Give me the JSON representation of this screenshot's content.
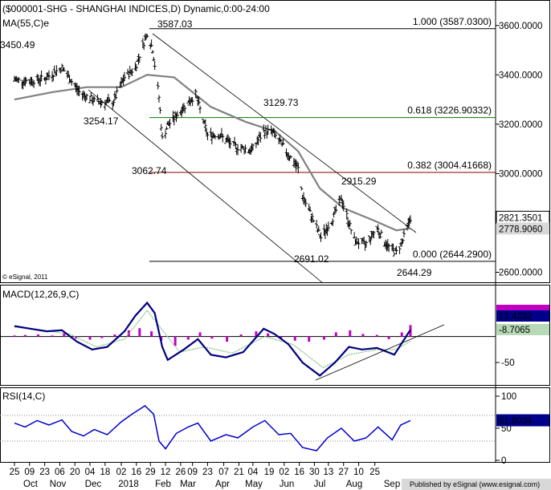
{
  "chart_data": [
    {
      "type": "candlestick",
      "panel": "price",
      "title": "($000001-SHG - SHANGHAI INDICES,D) Dynamic,0:00-24:00",
      "ma_label": "MA(55,C)e",
      "copyright": "© eSignal, 2011",
      "y_range": [
        2580,
        3660
      ],
      "y_ticks": [
        "3600.0000",
        "3400.0000",
        "3200.0000",
        "3000.0000",
        "2600.0000"
      ],
      "last_price": "2821.3501",
      "last_ma": "2778.9060",
      "fib_levels": [
        {
          "label": "1.000 (3587.0300)",
          "value": 3587.03,
          "color": "#000000"
        },
        {
          "label": "0.618 (3226.90332)",
          "value": 3226.90332,
          "color": "#008000"
        },
        {
          "label": "0.382 (3004.41668)",
          "value": 3004.41668,
          "color": "#800000"
        },
        {
          "label": "0.000 (2644.2900)",
          "value": 2644.29,
          "color": "#000000"
        }
      ],
      "annotations": [
        "3587.03",
        "3450.49",
        "3254.17",
        "3129.73",
        "3062.74",
        "2915.29",
        "2691.02",
        "2644.29"
      ],
      "close_path": [
        [
          "2017-09-25",
          3380
        ],
        [
          "2017-10-09",
          3375
        ],
        [
          "2017-10-23",
          3385
        ],
        [
          "2017-11-08",
          3430
        ],
        [
          "2017-11-24",
          3330
        ],
        [
          "2017-12-08",
          3295
        ],
        [
          "2017-12-25",
          3285
        ],
        [
          "2018-01-05",
          3390
        ],
        [
          "2018-01-15",
          3430
        ],
        [
          "2018-01-26",
          3570
        ],
        [
          "2018-01-31",
          3505
        ],
        [
          "2018-02-06",
          3310
        ],
        [
          "2018-02-09",
          3140
        ],
        [
          "2018-02-14",
          3195
        ],
        [
          "2018-03-01",
          3270
        ],
        [
          "2018-03-12",
          3320
        ],
        [
          "2018-03-23",
          3155
        ],
        [
          "2018-04-02",
          3160
        ],
        [
          "2018-04-17",
          3110
        ],
        [
          "2018-05-03",
          3095
        ],
        [
          "2018-05-14",
          3170
        ],
        [
          "2018-05-22",
          3170
        ],
        [
          "2018-06-04",
          3090
        ],
        [
          "2018-06-15",
          3020
        ],
        [
          "2018-06-19",
          2910
        ],
        [
          "2018-07-02",
          2780
        ],
        [
          "2018-07-06",
          2740
        ],
        [
          "2018-07-16",
          2810
        ],
        [
          "2018-07-25",
          2900
        ],
        [
          "2018-08-06",
          2730
        ],
        [
          "2018-08-16",
          2710
        ],
        [
          "2018-08-27",
          2780
        ],
        [
          "2018-09-05",
          2710
        ],
        [
          "2018-09-14",
          2680
        ],
        [
          "2018-09-20",
          2730
        ],
        [
          "2018-09-27",
          2821
        ]
      ],
      "ma_path": [
        [
          "2017-09-25",
          3300
        ],
        [
          "2017-10-30",
          3330
        ],
        [
          "2017-12-01",
          3350
        ],
        [
          "2018-01-02",
          3350
        ],
        [
          "2018-01-26",
          3400
        ],
        [
          "2018-02-20",
          3390
        ],
        [
          "2018-03-26",
          3270
        ],
        [
          "2018-04-27",
          3210
        ],
        [
          "2018-05-25",
          3170
        ],
        [
          "2018-06-15",
          3090
        ],
        [
          "2018-07-05",
          2940
        ],
        [
          "2018-07-27",
          2860
        ],
        [
          "2018-08-24",
          2810
        ],
        [
          "2018-09-14",
          2770
        ],
        [
          "2018-09-27",
          2778
        ]
      ]
    },
    {
      "type": "line",
      "panel": "macd",
      "title": "MACD(12,26,9,C)",
      "y_range": [
        -90,
        95
      ],
      "y_ticks": [
        "-50"
      ],
      "readouts": [
        "13.4282",
        "-8.7065"
      ],
      "macd_path": [
        [
          "2017-09-25",
          20
        ],
        [
          "2017-10-10",
          15
        ],
        [
          "2017-10-25",
          10
        ],
        [
          "2017-11-08",
          12
        ],
        [
          "2017-11-22",
          -10
        ],
        [
          "2017-12-06",
          -25
        ],
        [
          "2017-12-20",
          -20
        ],
        [
          "2018-01-05",
          10
        ],
        [
          "2018-01-15",
          40
        ],
        [
          "2018-01-26",
          65
        ],
        [
          "2018-02-02",
          45
        ],
        [
          "2018-02-09",
          -20
        ],
        [
          "2018-02-14",
          -45
        ],
        [
          "2018-03-01",
          -25
        ],
        [
          "2018-03-14",
          -5
        ],
        [
          "2018-03-26",
          -35
        ],
        [
          "2018-04-09",
          -40
        ],
        [
          "2018-04-25",
          -30
        ],
        [
          "2018-05-14",
          15
        ],
        [
          "2018-05-24",
          5
        ],
        [
          "2018-06-06",
          -15
        ],
        [
          "2018-06-19",
          -50
        ],
        [
          "2018-07-05",
          -75
        ],
        [
          "2018-07-19",
          -50
        ],
        [
          "2018-08-01",
          -20
        ],
        [
          "2018-08-13",
          -25
        ],
        [
          "2018-08-27",
          -22
        ],
        [
          "2018-09-12",
          -35
        ],
        [
          "2018-09-27",
          13
        ]
      ],
      "signal_path": [
        [
          "2017-09-25",
          18
        ],
        [
          "2017-10-20",
          12
        ],
        [
          "2017-11-15",
          5
        ],
        [
          "2017-12-10",
          -20
        ],
        [
          "2018-01-05",
          -5
        ],
        [
          "2018-01-26",
          50
        ],
        [
          "2018-02-10",
          10
        ],
        [
          "2018-02-25",
          -30
        ],
        [
          "2018-03-20",
          -20
        ],
        [
          "2018-04-15",
          -32
        ],
        [
          "2018-05-15",
          0
        ],
        [
          "2018-06-10",
          -15
        ],
        [
          "2018-07-08",
          -60
        ],
        [
          "2018-08-01",
          -35
        ],
        [
          "2018-08-27",
          -25
        ],
        [
          "2018-09-14",
          -25
        ],
        [
          "2018-09-27",
          -8.7
        ]
      ],
      "histogram": [
        [
          "2017-09-25",
          2
        ],
        [
          "2017-10-05",
          3
        ],
        [
          "2017-10-17",
          4
        ],
        [
          "2017-10-30",
          2
        ],
        [
          "2017-11-10",
          6
        ],
        [
          "2017-11-21",
          -4
        ],
        [
          "2017-12-04",
          -6
        ],
        [
          "2017-12-15",
          -3
        ],
        [
          "2017-12-27",
          4
        ],
        [
          "2018-01-09",
          12
        ],
        [
          "2018-01-19",
          16
        ],
        [
          "2018-01-30",
          10
        ],
        [
          "2018-02-08",
          -8
        ],
        [
          "2018-02-21",
          -18
        ],
        [
          "2018-03-05",
          -6
        ],
        [
          "2018-03-16",
          8
        ],
        [
          "2018-03-27",
          -4
        ],
        [
          "2018-04-10",
          -10
        ],
        [
          "2018-04-23",
          4
        ],
        [
          "2018-05-07",
          10
        ],
        [
          "2018-05-18",
          6
        ],
        [
          "2018-05-30",
          -4
        ],
        [
          "2018-06-12",
          -8
        ],
        [
          "2018-06-25",
          -10
        ],
        [
          "2018-07-09",
          -6
        ],
        [
          "2018-07-20",
          8
        ],
        [
          "2018-08-02",
          12
        ],
        [
          "2018-08-14",
          5
        ],
        [
          "2018-08-27",
          3
        ],
        [
          "2018-09-07",
          -5
        ],
        [
          "2018-09-19",
          8
        ],
        [
          "2018-09-27",
          22
        ]
      ]
    },
    {
      "type": "line",
      "panel": "rsi",
      "title": "RSI(14,C)",
      "y_range": [
        0,
        110
      ],
      "y_ticks": [
        "100",
        "50",
        "0"
      ],
      "reference_levels": [
        70,
        30
      ],
      "readout": "61.8034",
      "rsi_path": [
        [
          "2017-09-25",
          58
        ],
        [
          "2017-10-05",
          52
        ],
        [
          "2017-10-16",
          62
        ],
        [
          "2017-10-27",
          55
        ],
        [
          "2017-11-08",
          63
        ],
        [
          "2017-11-17",
          45
        ],
        [
          "2017-11-28",
          38
        ],
        [
          "2017-12-08",
          48
        ],
        [
          "2017-12-20",
          40
        ],
        [
          "2018-01-02",
          60
        ],
        [
          "2018-01-12",
          72
        ],
        [
          "2018-01-24",
          85
        ],
        [
          "2018-02-01",
          72
        ],
        [
          "2018-02-06",
          30
        ],
        [
          "2018-02-12",
          18
        ],
        [
          "2018-02-22",
          42
        ],
        [
          "2018-03-05",
          52
        ],
        [
          "2018-03-14",
          58
        ],
        [
          "2018-03-26",
          30
        ],
        [
          "2018-04-09",
          40
        ],
        [
          "2018-04-20",
          35
        ],
        [
          "2018-05-04",
          52
        ],
        [
          "2018-05-15",
          62
        ],
        [
          "2018-05-28",
          40
        ],
        [
          "2018-06-08",
          42
        ],
        [
          "2018-06-19",
          20
        ],
        [
          "2018-07-02",
          15
        ],
        [
          "2018-07-12",
          35
        ],
        [
          "2018-07-25",
          50
        ],
        [
          "2018-08-06",
          30
        ],
        [
          "2018-08-17",
          35
        ],
        [
          "2018-08-28",
          52
        ],
        [
          "2018-09-10",
          32
        ],
        [
          "2018-09-18",
          55
        ],
        [
          "2018-09-27",
          62
        ]
      ]
    }
  ],
  "x_axis": {
    "day_ticks": [
      "25",
      "09",
      "23",
      "06",
      "20",
      "04",
      "18",
      "02",
      "16",
      "29",
      "12",
      "26",
      "09",
      "23",
      "07",
      "21",
      "04",
      "19",
      "02",
      "16",
      "30",
      "13",
      "27",
      "10",
      "25"
    ],
    "day_tick_dates": [
      "2017-09-25",
      "2017-10-09",
      "2017-10-23",
      "2017-11-06",
      "2017-11-20",
      "2017-12-04",
      "2017-12-18",
      "2018-01-02",
      "2018-01-16",
      "2018-01-29",
      "2018-02-12",
      "2018-02-26",
      "2018-03-09",
      "2018-03-23",
      "2018-04-07",
      "2018-04-21",
      "2018-05-04",
      "2018-05-19",
      "2018-06-02",
      "2018-06-16",
      "2018-06-30",
      "2018-07-13",
      "2018-07-27",
      "2018-08-10",
      "2018-08-25"
    ],
    "month_ticks": [
      "Oct",
      "Nov",
      "Dec",
      "2018",
      "Feb",
      "Mar",
      "Apr",
      "May",
      "Jun",
      "Jul",
      "Aug",
      "Sep"
    ]
  },
  "footer": "Published by eSignal (www.esignal.com)",
  "colors": {
    "price": "#000000",
    "ma": "#808080",
    "macd": "#00007f",
    "signal": "#7fbf7f",
    "histogram": "#c000c0",
    "rsi": "#0000cc",
    "fib_green": "#008000",
    "fib_red": "#800000",
    "readout_bg": "#00008b"
  }
}
